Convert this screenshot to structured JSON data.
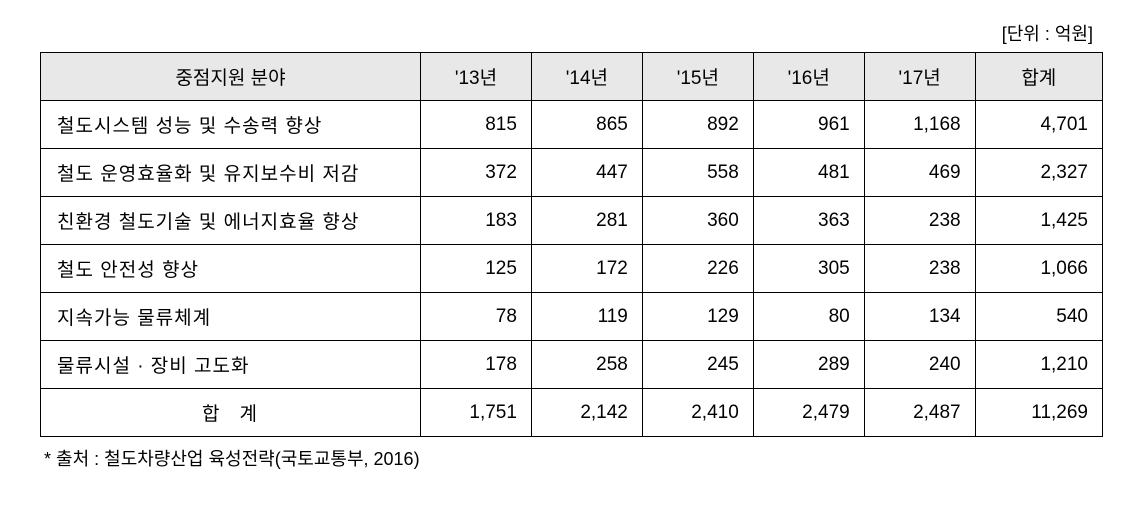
{
  "unit_label": "[단위 : 억원]",
  "columns": {
    "category": "중점지원 분야",
    "y13": "'13년",
    "y14": "'14년",
    "y15": "'15년",
    "y16": "'16년",
    "y17": "'17년",
    "total": "합계"
  },
  "rows": [
    {
      "label": "철도시스템  성능 및 수송력  향상",
      "y13": "815",
      "y14": "865",
      "y15": "892",
      "y16": "961",
      "y17": "1,168",
      "total": "4,701"
    },
    {
      "label": "철도 운영효율화 및 유지보수비 저감",
      "y13": "372",
      "y14": "447",
      "y15": "558",
      "y16": "481",
      "y17": "469",
      "total": "2,327"
    },
    {
      "label": "친환경 철도기술 및 에너지효율 향상",
      "y13": "183",
      "y14": "281",
      "y15": "360",
      "y16": "363",
      "y17": "238",
      "total": "1,425"
    },
    {
      "label": "철도  안전성  향상",
      "y13": "125",
      "y14": "172",
      "y15": "226",
      "y16": "305",
      "y17": "238",
      "total": "1,066"
    },
    {
      "label": "지속가능  물류체계",
      "y13": "78",
      "y14": "119",
      "y15": "129",
      "y16": "80",
      "y17": "134",
      "total": "540"
    },
    {
      "label": "물류시설 · 장비  고도화",
      "y13": "178",
      "y14": "258",
      "y15": "245",
      "y16": "289",
      "y17": "240",
      "total": "1,210"
    }
  ],
  "footer": {
    "label": "합계",
    "y13": "1,751",
    "y14": "2,142",
    "y15": "2,410",
    "y16": "2,479",
    "y17": "2,487",
    "total": "11,269"
  },
  "source_note": "* 출처 : 철도차량산업 육성전략(국토교통부, 2016)",
  "styling": {
    "header_bg": "#e8e8e8",
    "border_color": "#000000",
    "text_color": "#000000",
    "background": "#ffffff",
    "font_family": "Malgun Gothic",
    "header_fontsize": 19,
    "cell_fontsize": 19,
    "note_fontsize": 18,
    "col_widths": {
      "category": 370,
      "year": 108,
      "total": 124
    }
  }
}
